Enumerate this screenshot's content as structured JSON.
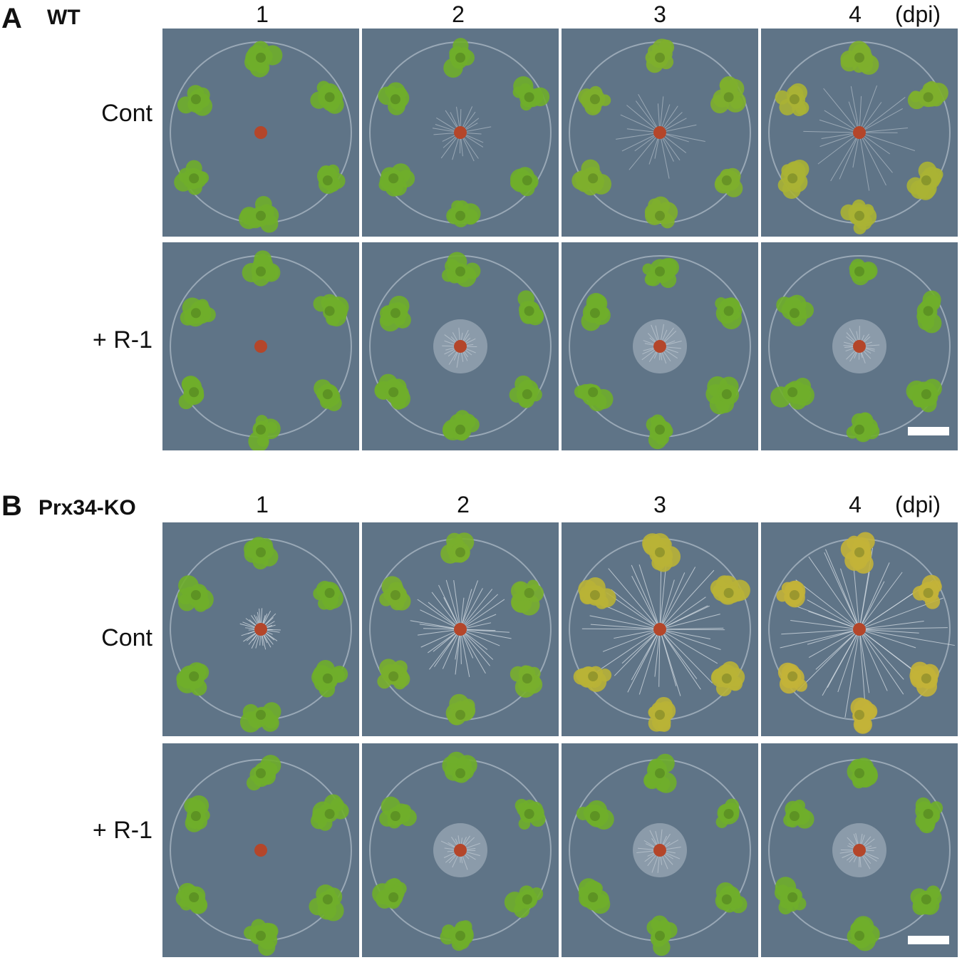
{
  "panels": [
    {
      "letter": "A",
      "genotype": "WT",
      "columns": [
        "1",
        "2",
        "3",
        "4"
      ],
      "dpi_label": "(dpi)",
      "rows": [
        "Cont",
        "+ R-1"
      ]
    },
    {
      "letter": "B",
      "genotype": "Prx34-KO",
      "columns": [
        "1",
        "2",
        "3",
        "4"
      ],
      "dpi_label": "(dpi)",
      "rows": [
        "Cont",
        "+ R-1"
      ]
    }
  ],
  "colors": {
    "plate_background": "#5f7487",
    "moss_healthy": "#6fae2a",
    "moss_yellow": "#d2b43a",
    "fungal_plug": "#b4462a",
    "hyphae": "#dfe6ec",
    "scale_bar": "#ffffff"
  }
}
